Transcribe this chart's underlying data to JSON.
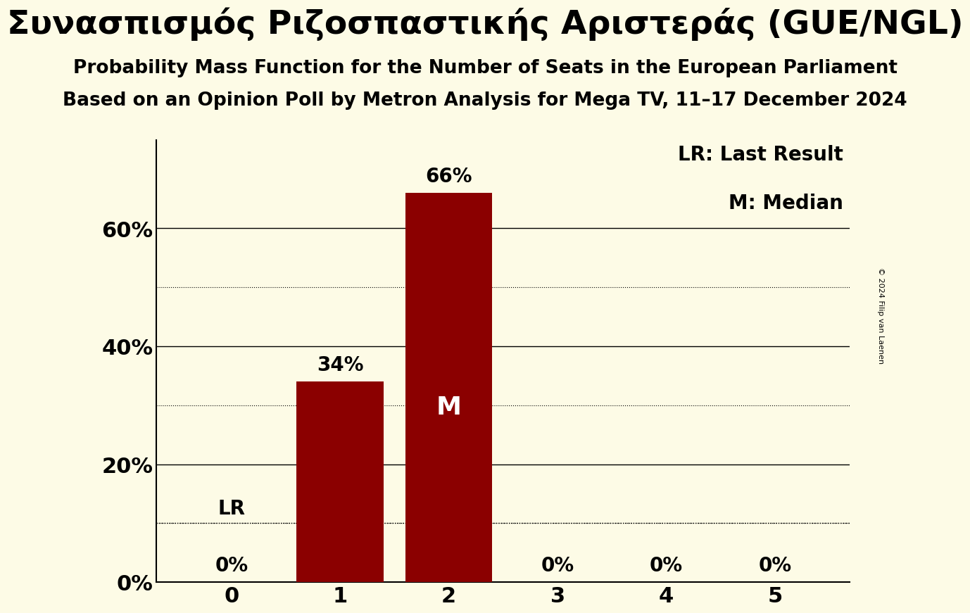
{
  "title_main": "Συνασπισμός Ριζοσπαστικής Αριστεράς (GUE/NGL)",
  "subtitle1": "Probability Mass Function for the Number of Seats in the European Parliament",
  "subtitle2": "Based on an Opinion Poll by Metron Analysis for Mega TV, 11–17 December 2024",
  "categories": [
    0,
    1,
    2,
    3,
    4,
    5
  ],
  "values": [
    0.0,
    0.34,
    0.66,
    0.0,
    0.0,
    0.0
  ],
  "bar_color": "#8B0000",
  "background_color": "#FDFBE6",
  "text_color": "#000000",
  "bar_labels": [
    "0%",
    "34%",
    "66%",
    "0%",
    "0%",
    "0%"
  ],
  "lr_bar_index": 0,
  "lr_value": 0.1,
  "median_bar_index": 2,
  "ylim": [
    0,
    0.75
  ],
  "yticks": [
    0.0,
    0.2,
    0.4,
    0.6
  ],
  "ytick_labels": [
    "0%",
    "20%",
    "40%",
    "60%"
  ],
  "dotted_lines": [
    0.1,
    0.3,
    0.5
  ],
  "legend_lr": "LR: Last Result",
  "legend_m": "M: Median",
  "copyright": "© 2024 Filip van Laenen",
  "title_fontsize": 34,
  "subtitle_fontsize": 19,
  "axis_tick_fontsize": 22,
  "bar_label_fontsize": 20,
  "median_label_fontsize": 26,
  "legend_fontsize": 20,
  "copyright_fontsize": 8
}
